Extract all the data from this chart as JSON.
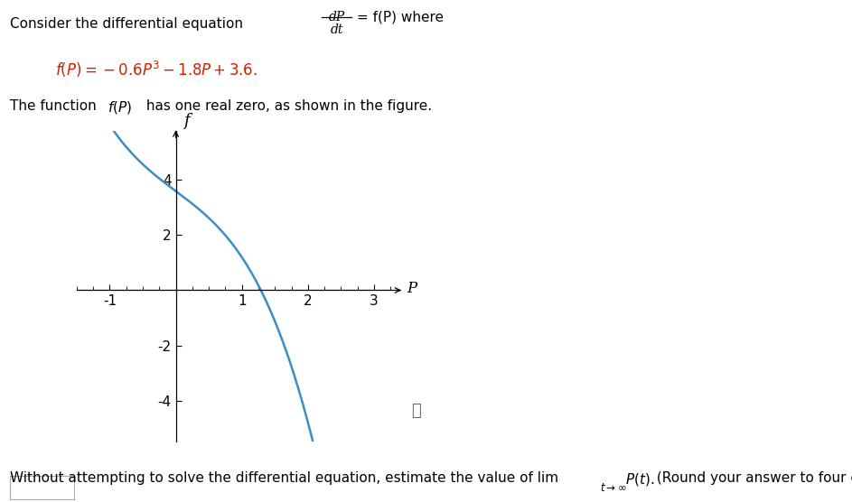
{
  "curve_color": "#3a8fc4",
  "axis_color": "#000000",
  "background_color": "#ffffff",
  "xlim": [
    -1.5,
    3.4
  ],
  "ylim": [
    -5.5,
    5.8
  ],
  "xticks": [
    -1,
    1,
    2,
    3
  ],
  "yticks": [
    -4,
    -2,
    2,
    4
  ],
  "xlabel": "P",
  "ylabel": "f",
  "curve_linewidth": 1.8,
  "coefficients": [
    -0.6,
    0,
    -1.8,
    3.6
  ],
  "p_range_start": -1.42,
  "p_range_end": 2.22
}
